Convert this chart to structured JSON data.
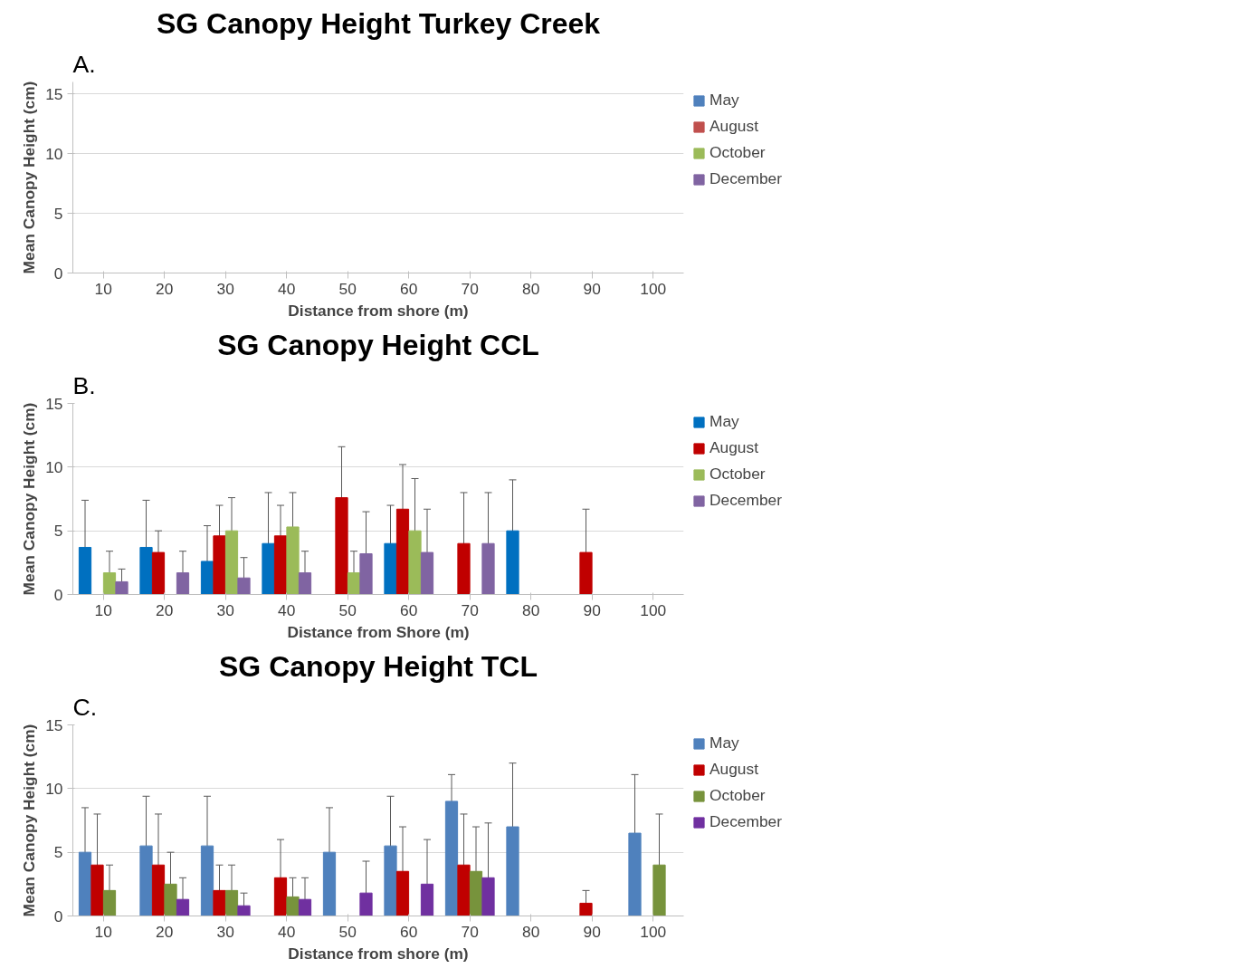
{
  "chart_data": [
    {
      "type": "bar",
      "title": "SG Canopy Height Turkey Creek",
      "xlabel": "Distance from shore (m)",
      "ylabel": "Mean Canopy Height (cm)",
      "annotations": [
        "A."
      ],
      "categories": [
        "10",
        "20",
        "30",
        "40",
        "50",
        "60",
        "70",
        "80",
        "90",
        "100"
      ],
      "ylim": [
        0,
        16
      ],
      "yticks": [
        0,
        5,
        10,
        15
      ],
      "grid": "y",
      "legend": "right",
      "series": [
        {
          "name": "May",
          "color": "#4f81bd",
          "values": [
            null,
            null,
            null,
            null,
            null,
            null,
            null,
            null,
            null,
            null
          ]
        },
        {
          "name": "August",
          "color": "#c0504d",
          "values": [
            null,
            null,
            null,
            null,
            null,
            null,
            null,
            null,
            null,
            null
          ]
        },
        {
          "name": "October",
          "color": "#9bbb59",
          "values": [
            null,
            null,
            null,
            null,
            null,
            null,
            null,
            null,
            null,
            null
          ]
        },
        {
          "name": "December",
          "color": "#8064a2",
          "values": [
            null,
            null,
            null,
            null,
            null,
            null,
            null,
            null,
            null,
            null
          ]
        }
      ]
    },
    {
      "type": "bar",
      "title": "SG Canopy Height CCL",
      "xlabel": "Distance from Shore (m)",
      "ylabel": "Mean Canopy Height (cm)",
      "annotations": [
        "B."
      ],
      "categories": [
        "10",
        "20",
        "30",
        "40",
        "50",
        "60",
        "70",
        "80",
        "90",
        "100"
      ],
      "ylim": [
        0,
        15
      ],
      "yticks": [
        0,
        5,
        10,
        15
      ],
      "grid": "y",
      "legend": "right",
      "series": [
        {
          "name": "May",
          "color": "#0070c0",
          "values": [
            3.7,
            3.7,
            2.6,
            4.0,
            null,
            4.0,
            null,
            5.0,
            null,
            null
          ],
          "errors": [
            3.7,
            3.7,
            2.8,
            4.0,
            null,
            3.0,
            null,
            4.0,
            null,
            null
          ]
        },
        {
          "name": "August",
          "color": "#c00000",
          "values": [
            null,
            3.3,
            4.6,
            4.6,
            7.6,
            6.7,
            4.0,
            null,
            3.3,
            null
          ],
          "errors": [
            null,
            1.7,
            2.4,
            2.4,
            4.0,
            3.5,
            4.0,
            null,
            3.4,
            null
          ]
        },
        {
          "name": "October",
          "color": "#9bbb59",
          "values": [
            1.7,
            null,
            5.0,
            5.3,
            1.7,
            5.0,
            null,
            null,
            null,
            null
          ],
          "errors": [
            1.7,
            null,
            2.6,
            2.7,
            1.7,
            4.1,
            null,
            null,
            null,
            null
          ]
        },
        {
          "name": "December",
          "color": "#8064a2",
          "values": [
            1.0,
            1.7,
            1.3,
            1.7,
            3.2,
            3.3,
            4.0,
            null,
            null,
            null
          ],
          "errors": [
            1.0,
            1.7,
            1.6,
            1.7,
            3.3,
            3.4,
            4.0,
            null,
            null,
            null
          ]
        }
      ]
    },
    {
      "type": "bar",
      "title": "SG Canopy Height TCL",
      "xlabel": "Distance from shore (m)",
      "ylabel": "Mean Canopy Height (cm)",
      "annotations": [
        "C."
      ],
      "categories": [
        "10",
        "20",
        "30",
        "40",
        "50",
        "60",
        "70",
        "80",
        "90",
        "100"
      ],
      "ylim": [
        0,
        15
      ],
      "yticks": [
        0,
        5,
        10,
        15
      ],
      "grid": "y",
      "legend": "right",
      "series": [
        {
          "name": "May",
          "color": "#4f81bd",
          "values": [
            5.0,
            5.5,
            5.5,
            null,
            5.0,
            5.5,
            9.0,
            7.0,
            null,
            6.5
          ],
          "errors": [
            3.5,
            3.9,
            3.9,
            null,
            3.5,
            3.9,
            2.1,
            5.0,
            null,
            4.6
          ]
        },
        {
          "name": "August",
          "color": "#c00000",
          "values": [
            4.0,
            4.0,
            2.0,
            3.0,
            null,
            3.5,
            4.0,
            null,
            1.0,
            null
          ],
          "errors": [
            4.0,
            4.0,
            2.0,
            3.0,
            null,
            3.5,
            4.0,
            null,
            1.0,
            null
          ]
        },
        {
          "name": "October",
          "color": "#77933c",
          "values": [
            2.0,
            2.5,
            2.0,
            1.5,
            null,
            null,
            3.5,
            null,
            null,
            4.0
          ],
          "errors": [
            2.0,
            2.5,
            2.0,
            1.5,
            null,
            null,
            3.5,
            null,
            null,
            4.0
          ]
        },
        {
          "name": "December",
          "color": "#7030a0",
          "values": [
            null,
            1.3,
            0.8,
            1.3,
            1.8,
            2.5,
            3.0,
            null,
            null,
            null
          ],
          "errors": [
            null,
            1.7,
            1.0,
            1.7,
            2.5,
            3.5,
            4.3,
            null,
            null,
            null
          ]
        }
      ]
    }
  ]
}
